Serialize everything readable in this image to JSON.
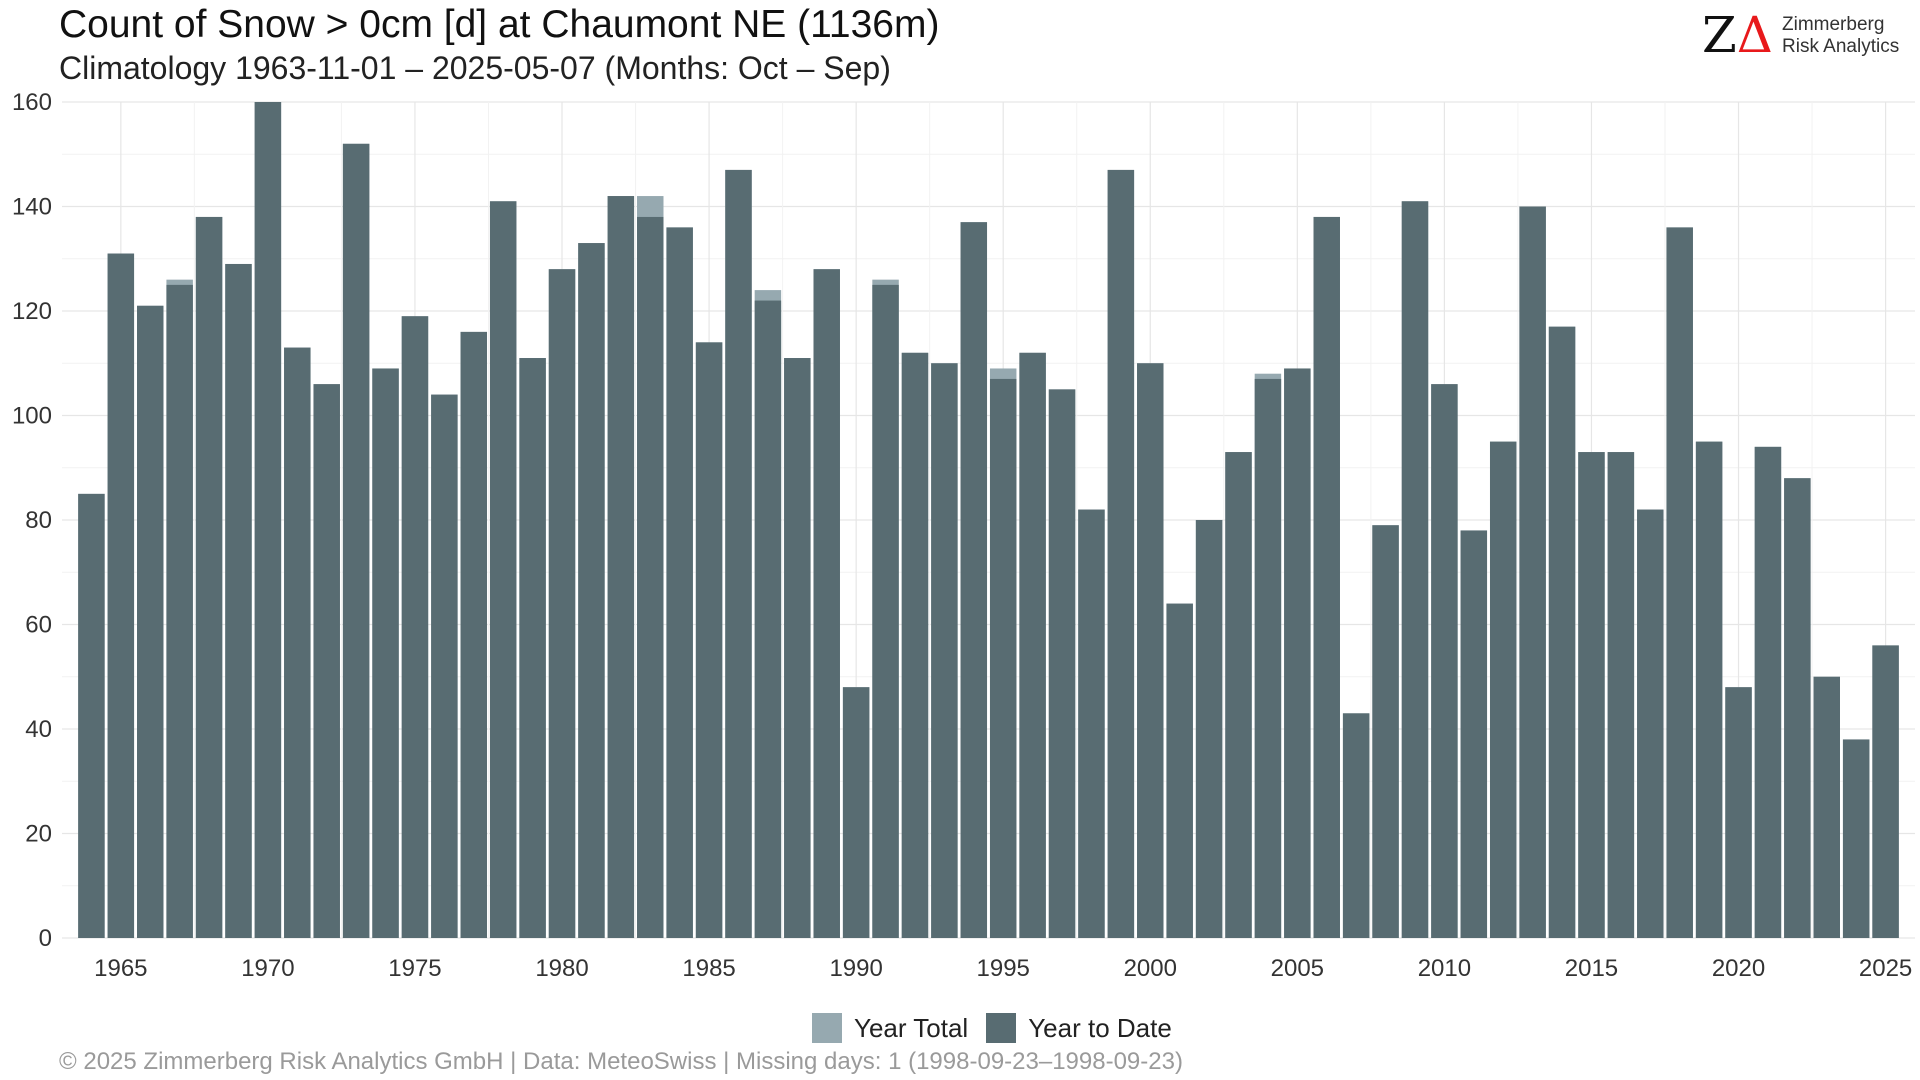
{
  "header": {
    "title": "Count of Snow > 0cm [d] at Chaumont  NE (1136m)",
    "subtitle": "Climatology 1963-11-01 – 2025-05-07 (Months: Oct – Sep)"
  },
  "logo": {
    "mark_z": "Z",
    "mark_delta": "Δ",
    "line1": "Zimmerberg",
    "line2": "Risk Analytics"
  },
  "caption": "©  2025 Zimmerberg Risk Analytics GmbH | Data: MeteoSwiss | Missing days: 1 (1998-09-23–1998-09-23)",
  "colors": {
    "year_total": "#96a9b0",
    "year_to_date": "#586c72",
    "grid": "#e6e6e6"
  },
  "chart_data": {
    "type": "bar",
    "title": "Count of Snow > 0cm [d] at Chaumont  NE (1136m)",
    "subtitle": "Climatology 1963-11-01 – 2025-05-07 (Months: Oct – Sep)",
    "xlabel": "",
    "ylabel": "",
    "ylim": [
      0,
      160
    ],
    "yticks": [
      0,
      20,
      40,
      60,
      80,
      100,
      120,
      140,
      160
    ],
    "xticks": [
      1965,
      1970,
      1975,
      1980,
      1985,
      1990,
      1995,
      2000,
      2005,
      2010,
      2015,
      2020,
      2025
    ],
    "grid": true,
    "legend_position": "bottom",
    "bars_overlaid": true,
    "x": [
      1964,
      1965,
      1966,
      1967,
      1968,
      1969,
      1970,
      1971,
      1972,
      1973,
      1974,
      1975,
      1976,
      1977,
      1978,
      1979,
      1980,
      1981,
      1982,
      1983,
      1984,
      1985,
      1986,
      1987,
      1988,
      1989,
      1990,
      1991,
      1992,
      1993,
      1994,
      1995,
      1996,
      1997,
      1998,
      1999,
      2000,
      2001,
      2002,
      2003,
      2004,
      2005,
      2006,
      2007,
      2008,
      2009,
      2010,
      2011,
      2012,
      2013,
      2014,
      2015,
      2016,
      2017,
      2018,
      2019,
      2020,
      2021,
      2022,
      2023,
      2024,
      2025
    ],
    "series": [
      {
        "name": "Year Total",
        "color": "#96a9b0",
        "values": [
          85,
          131,
          121,
          126,
          138,
          129,
          160,
          113,
          106,
          152,
          109,
          119,
          104,
          116,
          141,
          111,
          128,
          133,
          142,
          142,
          136,
          114,
          147,
          124,
          111,
          128,
          48,
          126,
          112,
          110,
          137,
          109,
          112,
          105,
          82,
          147,
          110,
          64,
          80,
          93,
          108,
          109,
          138,
          43,
          79,
          141,
          106,
          78,
          95,
          140,
          117,
          93,
          93,
          82,
          136,
          95,
          48,
          94,
          88,
          50,
          38,
          56
        ]
      },
      {
        "name": "Year to Date",
        "color": "#586c72",
        "values": [
          85,
          131,
          121,
          125,
          138,
          129,
          160,
          113,
          106,
          152,
          109,
          119,
          104,
          116,
          141,
          111,
          128,
          133,
          142,
          138,
          136,
          114,
          147,
          122,
          111,
          128,
          48,
          125,
          112,
          110,
          137,
          107,
          112,
          105,
          82,
          147,
          110,
          64,
          80,
          93,
          107,
          109,
          138,
          43,
          79,
          141,
          106,
          78,
          95,
          140,
          117,
          93,
          93,
          82,
          136,
          95,
          48,
          94,
          88,
          50,
          38,
          56
        ]
      }
    ]
  }
}
